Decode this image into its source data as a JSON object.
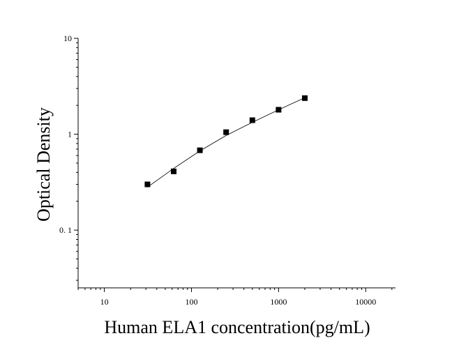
{
  "chart_data": {
    "type": "scatter",
    "title": "",
    "xlabel": "Human ELA1 concentration(pg/mL)",
    "ylabel": "Optical Density",
    "x_scale": "log",
    "y_scale": "log",
    "xlim": [
      5,
      22000
    ],
    "ylim": [
      0.025,
      10
    ],
    "x_ticks": [
      {
        "value": 10,
        "label": "10"
      },
      {
        "value": 100,
        "label": "100"
      },
      {
        "value": 1000,
        "label": "1000"
      },
      {
        "value": 10000,
        "label": "10000"
      }
    ],
    "y_ticks": [
      {
        "value": 0.1,
        "label": "0. 1"
      },
      {
        "value": 1,
        "label": "1"
      },
      {
        "value": 10,
        "label": "10"
      }
    ],
    "grid": false,
    "legend": "none",
    "series": [
      {
        "marker": "square",
        "color": "#000000",
        "x": [
          31.25,
          62.5,
          125,
          250,
          500,
          1000,
          2000
        ],
        "y": [
          0.3,
          0.41,
          0.68,
          1.05,
          1.4,
          1.8,
          2.38
        ]
      }
    ],
    "fit_curve": {
      "style": "line",
      "color": "#000000",
      "x": [
        31.25,
        62.5,
        125,
        250,
        500,
        1000,
        2000
      ],
      "y": [
        0.28,
        0.44,
        0.67,
        0.97,
        1.33,
        1.8,
        2.4
      ]
    }
  }
}
